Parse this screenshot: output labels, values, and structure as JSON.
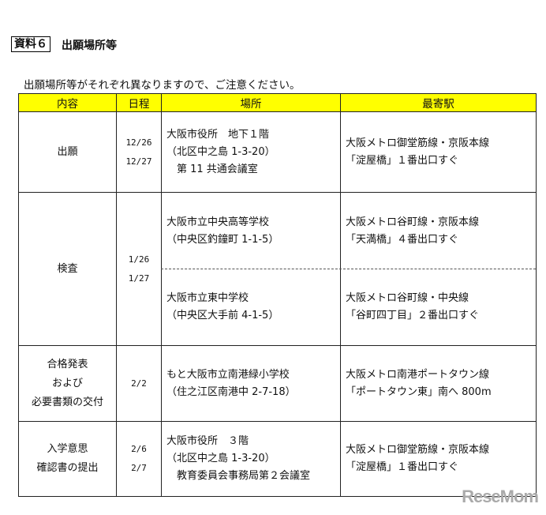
{
  "heading": {
    "label": "資料６",
    "title": "出願場所等"
  },
  "note": "出願場所等がそれぞれ異なりますので、ご注意ください。",
  "table": {
    "headers": [
      "内容",
      "日程",
      "場所",
      "最寄駅"
    ],
    "header_color": "#ffff00",
    "rows": [
      {
        "content": [
          "出願"
        ],
        "dates": [
          "12/26",
          "12/27"
        ],
        "places": [
          {
            "lines": [
              "大阪市役所　地下１階",
              "（北区中之島 1-3-20）",
              "　第 11 共通会議室"
            ],
            "station": [
              "大阪メトロ御堂筋線・京阪本線",
              "「淀屋橋」１番出口すぐ"
            ]
          }
        ]
      },
      {
        "content": [
          "検査"
        ],
        "dates": [
          "1/26",
          "1/27"
        ],
        "places": [
          {
            "lines": [
              "大阪市立中央高等学校",
              "（中央区釣鐘町 1-1-5）"
            ],
            "station": [
              "大阪メトロ谷町線・京阪本線",
              "「天満橋」４番出口すぐ"
            ]
          },
          {
            "lines": [
              "大阪市立東中学校",
              "（中央区大手前 4-1-5）"
            ],
            "station": [
              "大阪メトロ谷町線・中央線",
              "「谷町四丁目」２番出口すぐ"
            ]
          }
        ]
      },
      {
        "content": [
          "合格発表",
          "および",
          "必要書類の交付"
        ],
        "dates": [
          "2/2"
        ],
        "places": [
          {
            "lines": [
              "もと大阪市立南港緑小学校",
              "（住之江区南港中 2-7-18）"
            ],
            "station": [
              "大阪メトロ南港ポートタウン線",
              "「ポートタウン東」南へ 800m"
            ]
          }
        ]
      },
      {
        "content": [
          "入学意思",
          "確認書の提出"
        ],
        "dates": [
          "2/6",
          "2/7"
        ],
        "places": [
          {
            "lines": [
              "大阪市役所　３階",
              "（北区中之島 1-3-20）",
              "　教育委員会事務局第２会議室"
            ],
            "station": [
              "大阪メトロ御堂筋線・京阪本線",
              "「淀屋橋」１番出口すぐ"
            ]
          }
        ]
      }
    ]
  },
  "watermark": "ReseMom"
}
